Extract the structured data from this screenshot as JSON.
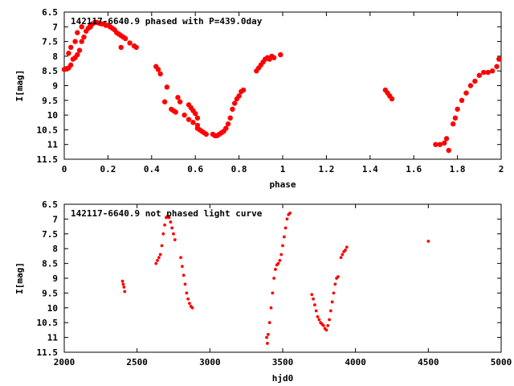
{
  "chart_data": [
    {
      "type": "scatter",
      "title": "142117-6640.9 phased with P=439.0day",
      "xlabel": "phase",
      "ylabel": "I[mag]",
      "xlim": [
        0,
        2
      ],
      "ylim": [
        11.5,
        6.5
      ],
      "y_inverted": true,
      "xticks": [
        "0",
        "0.2",
        "0.4",
        "0.6",
        "0.8",
        "1",
        "1.2",
        "1.4",
        "1.6",
        "1.8",
        "2"
      ],
      "yticks": [
        "6.5",
        "7",
        "7.5",
        "8",
        "8.5",
        "9",
        "9.5",
        "10",
        "10.5",
        "11",
        "11.5"
      ],
      "color": "#ff0000",
      "series": [
        {
          "x": [
            0.0,
            0.01,
            0.02,
            0.03,
            0.04,
            0.05,
            0.06,
            0.07,
            0.08,
            0.09,
            0.1,
            0.11,
            0.12,
            0.13,
            0.14,
            0.15,
            0.16,
            0.17,
            0.18,
            0.19,
            0.2,
            0.21,
            0.22,
            0.23,
            0.24,
            0.25,
            0.26,
            0.27,
            0.28,
            0.3,
            0.32,
            0.33,
            0.02,
            0.03,
            0.05,
            0.06,
            0.08,
            0.12,
            0.26,
            0.42,
            0.43,
            0.44,
            0.46,
            0.47,
            0.49,
            0.5,
            0.51,
            0.52,
            0.53,
            0.55,
            0.57,
            0.59,
            0.61,
            0.61,
            0.62,
            0.63,
            0.64,
            0.65,
            0.57,
            0.58,
            0.59,
            0.6,
            0.61,
            0.68,
            0.69,
            0.7,
            0.71,
            0.72,
            0.73,
            0.74,
            0.75,
            0.76,
            0.77,
            0.78,
            0.79,
            0.8,
            0.81,
            0.82,
            0.88,
            0.89,
            0.9,
            0.91,
            0.92,
            0.93,
            0.94,
            0.95,
            0.96,
            0.99,
            1.47,
            1.48,
            1.49,
            1.5,
            1.7,
            1.72,
            1.74,
            1.75,
            1.76,
            1.78,
            1.79,
            1.8,
            1.82,
            1.84,
            1.86,
            1.88,
            1.9,
            1.92,
            1.94,
            1.96,
            1.98,
            1.99
          ],
          "y": [
            8.45,
            8.42,
            8.4,
            8.3,
            8.1,
            8.05,
            7.95,
            7.8,
            7.5,
            7.35,
            7.15,
            7.05,
            6.95,
            6.9,
            6.85,
            6.85,
            6.88,
            6.9,
            6.9,
            6.95,
            6.95,
            7.0,
            7.05,
            7.1,
            7.2,
            7.25,
            7.3,
            7.35,
            7.4,
            7.55,
            7.65,
            7.7,
            7.9,
            7.7,
            7.5,
            7.2,
            7.0,
            7.0,
            7.7,
            8.35,
            8.45,
            8.6,
            9.55,
            9.05,
            9.8,
            9.85,
            9.9,
            9.4,
            9.55,
            10.0,
            10.15,
            10.25,
            10.35,
            10.45,
            10.5,
            10.55,
            10.6,
            10.65,
            9.65,
            9.75,
            9.85,
            9.95,
            10.1,
            10.65,
            10.7,
            10.7,
            10.65,
            10.6,
            10.55,
            10.45,
            10.3,
            10.1,
            9.8,
            9.6,
            9.45,
            9.35,
            9.2,
            9.15,
            8.5,
            8.4,
            8.3,
            8.2,
            8.1,
            8.05,
            8.1,
            8.0,
            8.05,
            7.95,
            9.15,
            9.25,
            9.35,
            9.45,
            11.0,
            11.0,
            10.95,
            10.8,
            11.2,
            10.3,
            10.1,
            9.8,
            9.5,
            9.25,
            9.0,
            8.85,
            8.65,
            8.55,
            8.55,
            8.5,
            8.35,
            8.1
          ]
        }
      ]
    },
    {
      "type": "scatter",
      "title": "142117-6640.9 not phased light curve",
      "xlabel": "hjd0",
      "ylabel": "I[mag]",
      "xlim": [
        2000,
        5000
      ],
      "ylim": [
        11.5,
        6.5
      ],
      "y_inverted": true,
      "xticks": [
        "2000",
        "2500",
        "3000",
        "3500",
        "4000",
        "4500",
        "5000"
      ],
      "yticks": [
        "6.5",
        "7",
        "7.5",
        "8",
        "8.5",
        "9",
        "9.5",
        "10",
        "10.5",
        "11",
        "11.5"
      ],
      "color": "#ff0000",
      "series": [
        {
          "x": [
            2400,
            2405,
            2410,
            2415,
            2630,
            2640,
            2650,
            2660,
            2670,
            2680,
            2690,
            2700,
            2710,
            2720,
            2730,
            2740,
            2750,
            2760,
            2800,
            2810,
            2820,
            2830,
            2840,
            2850,
            2860,
            2870,
            2880,
            3390,
            3395,
            3400,
            3410,
            3420,
            3430,
            3440,
            3450,
            3460,
            3470,
            3480,
            3490,
            3500,
            3510,
            3520,
            3530,
            3540,
            3550,
            3700,
            3710,
            3720,
            3730,
            3740,
            3750,
            3760,
            3770,
            3780,
            3790,
            3800,
            3810,
            3820,
            3830,
            3840,
            3850,
            3860,
            3870,
            3880,
            3900,
            3910,
            3920,
            3930,
            3940,
            4500
          ],
          "y": [
            9.1,
            9.2,
            9.3,
            9.45,
            8.5,
            8.4,
            8.3,
            8.2,
            7.9,
            7.5,
            7.2,
            6.95,
            6.9,
            6.95,
            7.1,
            7.3,
            7.5,
            7.7,
            8.3,
            8.6,
            8.9,
            9.2,
            9.5,
            9.7,
            9.85,
            9.95,
            10.0,
            11.0,
            11.2,
            10.9,
            10.5,
            10.0,
            9.5,
            9.0,
            8.7,
            8.55,
            8.5,
            8.4,
            8.2,
            7.9,
            7.6,
            7.3,
            7.0,
            6.85,
            6.8,
            9.55,
            9.7,
            9.9,
            10.1,
            10.3,
            10.4,
            10.5,
            10.55,
            10.6,
            10.7,
            10.75,
            10.6,
            10.4,
            10.1,
            9.8,
            9.5,
            9.2,
            9.0,
            8.95,
            8.3,
            8.2,
            8.1,
            8.05,
            7.95,
            7.75
          ]
        }
      ]
    }
  ]
}
